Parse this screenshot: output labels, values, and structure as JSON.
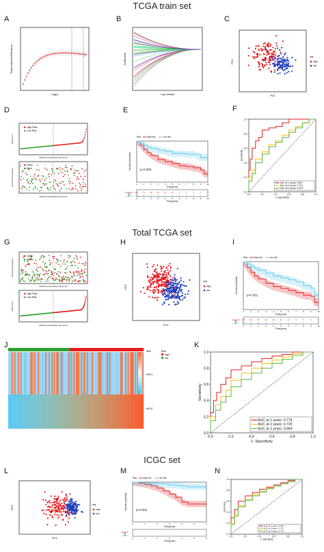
{
  "titles": {
    "train": "TCGA train set",
    "total": "Total TCGA set",
    "icgc": "ICGC set"
  },
  "panels": [
    "A",
    "B",
    "C",
    "D",
    "E",
    "F",
    "G",
    "H",
    "I",
    "J",
    "K",
    "L",
    "M",
    "N"
  ],
  "colors": {
    "high": "#e41a1c",
    "low": "#1f3fbf",
    "risk_low": "#5ec8ea",
    "dead": "#e41a1c",
    "alive": "#2ca02c",
    "auc1": "#e41a1c",
    "auc2": "#f4c20d",
    "auc3": "#55b848"
  },
  "labels": {
    "pca_x": "PC1",
    "pca_y": "PC2",
    "pca_legend_title": "risk",
    "pca_high": "high",
    "pca_low": "low",
    "surv_y": "Survival probability",
    "surv_x": "Time(years)",
    "risk_title": "Risk",
    "risk_high": "High risk",
    "risk_low": "Low risk",
    "roc_x": "1-Specificity",
    "roc_y": "Sensitivity",
    "risk_score": "Risk score",
    "surv_time": "Survival time (years)",
    "patients_x": "Patients (increasing risk socre)",
    "lasso_x": "Log(λ)",
    "lasso_y_A": "Partial Likelihood Deviance",
    "lasso_y_B": "Coefficients",
    "lasso_x_B": "Log Lambda",
    "dead": "Dead",
    "alive": "Alive",
    "high_risk": "High Risk",
    "low_risk": "Low Risk",
    "gene1": "RAC1",
    "gene2": "KIF2C",
    "heat_risk": "Risk",
    "heat_legend_high": "high",
    "heat_legend_low": "low"
  },
  "chart_data": [
    {
      "panel": "E",
      "type": "line",
      "title": "",
      "pvalue": "p=0.006",
      "xlabel": "Time(years)",
      "ylabel": "Survival probability",
      "xlim": [
        0,
        10
      ],
      "ylim": [
        0,
        1
      ],
      "series": [
        {
          "name": "High risk",
          "x": [
            0,
            0.5,
            1,
            1.5,
            2,
            3,
            4,
            5,
            6,
            7,
            8,
            9,
            9.5,
            10
          ],
          "y": [
            1,
            0.9,
            0.8,
            0.72,
            0.65,
            0.55,
            0.5,
            0.45,
            0.4,
            0.38,
            0.35,
            0.3,
            0.2,
            0.2
          ]
        },
        {
          "name": "Low risk",
          "x": [
            0,
            0.5,
            1,
            1.5,
            2,
            3,
            4,
            5,
            6,
            7,
            8,
            9,
            9.5,
            10
          ],
          "y": [
            1,
            0.95,
            0.9,
            0.85,
            0.82,
            0.78,
            0.75,
            0.7,
            0.7,
            0.68,
            0.68,
            0.6,
            0.6,
            0.6
          ]
        }
      ],
      "risk_table": {
        "High risk": [
          "184",
          "74",
          "39",
          "24",
          "15",
          "12",
          "7",
          "5",
          "4",
          "2",
          "1"
        ],
        "Low risk": [
          "184",
          "86",
          "50",
          "34",
          "22",
          "14",
          "9",
          "6",
          "3",
          "2",
          "1"
        ]
      }
    },
    {
      "panel": "F",
      "type": "line",
      "xlabel": "1-Specificity",
      "ylabel": "Sensitivity",
      "xlim": [
        0,
        1
      ],
      "ylim": [
        0,
        1
      ],
      "xticks": [
        "0.0",
        "0.2",
        "0.4",
        "0.6",
        "0.8",
        "1.0"
      ],
      "yticks": [
        "0.0",
        "0.2",
        "0.4",
        "0.6",
        "0.8",
        "1.0"
      ],
      "series": [
        {
          "name": "AUC at 1 years: 0.807",
          "x": [
            0,
            0.02,
            0.05,
            0.1,
            0.15,
            0.2,
            0.3,
            0.4,
            0.5,
            0.6,
            0.8,
            1
          ],
          "y": [
            0,
            0.3,
            0.45,
            0.6,
            0.7,
            0.75,
            0.85,
            0.88,
            0.9,
            0.95,
            1,
            1
          ]
        },
        {
          "name": "AUC at 2 years: 0.701",
          "x": [
            0,
            0.05,
            0.1,
            0.2,
            0.3,
            0.4,
            0.5,
            0.6,
            0.7,
            0.8,
            0.9,
            1
          ],
          "y": [
            0,
            0.2,
            0.3,
            0.45,
            0.55,
            0.65,
            0.7,
            0.78,
            0.85,
            0.9,
            0.95,
            1
          ]
        },
        {
          "name": "AUC at 3 years: 0.678",
          "x": [
            0,
            0.05,
            0.1,
            0.2,
            0.3,
            0.4,
            0.5,
            0.6,
            0.7,
            0.8,
            0.9,
            1
          ],
          "y": [
            0,
            0.15,
            0.25,
            0.4,
            0.52,
            0.62,
            0.68,
            0.75,
            0.82,
            0.88,
            0.95,
            1
          ]
        }
      ]
    },
    {
      "panel": "I",
      "type": "line",
      "pvalue": "p<0.001",
      "xlabel": "Time(years)",
      "ylabel": "Survival probability",
      "xlim": [
        0,
        10
      ],
      "ylim": [
        0,
        1
      ],
      "series": [
        {
          "name": "High risk",
          "x": [
            0,
            0.5,
            1,
            1.5,
            2,
            3,
            4,
            5,
            6,
            7,
            8,
            9,
            9.5,
            10
          ],
          "y": [
            1,
            0.88,
            0.78,
            0.7,
            0.64,
            0.55,
            0.48,
            0.44,
            0.4,
            0.35,
            0.3,
            0.28,
            0.15,
            0.15
          ]
        },
        {
          "name": "Low risk",
          "x": [
            0,
            0.5,
            1,
            1.5,
            2,
            3,
            4,
            5,
            6,
            7,
            8,
            9,
            9.5,
            10
          ],
          "y": [
            1,
            0.95,
            0.9,
            0.86,
            0.82,
            0.76,
            0.7,
            0.66,
            0.62,
            0.58,
            0.5,
            0.45,
            0.3,
            0.3
          ]
        }
      ],
      "risk_table": {
        "High risk": [
          "176",
          "114",
          "58",
          "36",
          "28",
          "18",
          "14",
          "9",
          "5",
          "3",
          "1"
        ],
        "Low risk": [
          "176",
          "109",
          "68",
          "44",
          "34",
          "21",
          "14",
          "11",
          "5",
          "3",
          "2"
        ]
      }
    },
    {
      "panel": "K",
      "type": "line",
      "xlabel": "1−Specificity",
      "ylabel": "Sensitivity",
      "xlim": [
        0,
        1
      ],
      "ylim": [
        0,
        1
      ],
      "xticks": [
        "0.0",
        "0.2",
        "0.4",
        "0.6",
        "0.8",
        "1.0"
      ],
      "yticks": [
        "0.0",
        "0.2",
        "0.4",
        "0.6",
        "0.8",
        "1.0"
      ],
      "series": [
        {
          "name": "AUC at 1 years: 0.774",
          "x": [
            0,
            0.03,
            0.06,
            0.1,
            0.15,
            0.2,
            0.3,
            0.4,
            0.5,
            0.6,
            0.7,
            0.8,
            0.9,
            1
          ],
          "y": [
            0,
            0.25,
            0.4,
            0.5,
            0.6,
            0.68,
            0.78,
            0.83,
            0.88,
            0.92,
            0.95,
            0.97,
            1,
            1
          ]
        },
        {
          "name": "AUC at 2 years: 0.720",
          "x": [
            0,
            0.05,
            0.1,
            0.15,
            0.2,
            0.3,
            0.4,
            0.5,
            0.6,
            0.7,
            0.8,
            0.9,
            1
          ],
          "y": [
            0,
            0.2,
            0.35,
            0.45,
            0.53,
            0.65,
            0.74,
            0.8,
            0.86,
            0.9,
            0.94,
            0.98,
            1
          ]
        },
        {
          "name": "AUC at 3 years: 0.669",
          "x": [
            0,
            0.05,
            0.1,
            0.15,
            0.2,
            0.3,
            0.4,
            0.5,
            0.6,
            0.7,
            0.8,
            0.9,
            1
          ],
          "y": [
            0,
            0.15,
            0.28,
            0.38,
            0.45,
            0.57,
            0.66,
            0.74,
            0.8,
            0.86,
            0.91,
            0.96,
            1
          ]
        }
      ]
    },
    {
      "panel": "M",
      "type": "line",
      "pvalue": "p<0.001",
      "xlabel": "Time(years)",
      "ylabel": "Survival probability",
      "xlim": [
        0,
        6
      ],
      "ylim": [
        0,
        1
      ],
      "series": [
        {
          "name": "High risk",
          "x": [
            0,
            0.5,
            1,
            1.5,
            2,
            2.5,
            3,
            3.5,
            4,
            4.5,
            5,
            6
          ],
          "y": [
            1,
            0.97,
            0.94,
            0.9,
            0.85,
            0.78,
            0.7,
            0.62,
            0.5,
            0.45,
            0.45,
            0.45
          ]
        },
        {
          "name": "Low risk",
          "x": [
            0,
            0.5,
            1,
            1.5,
            2,
            2.5,
            3,
            3.5,
            4,
            4.5,
            5,
            6
          ],
          "y": [
            1,
            0.99,
            0.98,
            0.97,
            0.96,
            0.95,
            0.93,
            0.92,
            0.9,
            0.88,
            0.88,
            0.88
          ]
        }
      ],
      "risk_table": {
        "High risk": [
          "",
          "",
          "",
          "",
          "",
          "",
          ""
        ],
        "Low risk": [
          "",
          "",
          "",
          "",
          "",
          "",
          ""
        ]
      }
    },
    {
      "panel": "N",
      "type": "line",
      "xlabel": "1−Specificity",
      "ylabel": "Sensitivity",
      "xlim": [
        0,
        1
      ],
      "ylim": [
        0,
        1
      ],
      "xticks": [
        "0.0",
        "0.2",
        "0.4",
        "0.6",
        "0.8",
        "1.0"
      ],
      "yticks": [
        "0.0",
        "0.2",
        "0.4",
        "0.6",
        "0.8",
        "1.0"
      ],
      "series": [
        {
          "name": "AUC at 1 years: 0.756",
          "x": [
            0,
            0.05,
            0.1,
            0.2,
            0.3,
            0.4,
            0.5,
            0.6,
            0.7,
            0.8,
            0.9,
            1
          ],
          "y": [
            0,
            0.3,
            0.45,
            0.6,
            0.7,
            0.76,
            0.82,
            0.86,
            0.9,
            0.94,
            0.98,
            1
          ]
        },
        {
          "name": "AUC at 2 years: 0.722",
          "x": [
            0,
            0.05,
            0.1,
            0.2,
            0.3,
            0.4,
            0.5,
            0.6,
            0.7,
            0.8,
            0.9,
            1
          ],
          "y": [
            0,
            0.2,
            0.35,
            0.52,
            0.63,
            0.72,
            0.78,
            0.84,
            0.88,
            0.92,
            0.96,
            1
          ]
        },
        {
          "name": "AUC at 3 years: 0.724",
          "x": [
            0,
            0.05,
            0.1,
            0.2,
            0.3,
            0.4,
            0.5,
            0.6,
            0.7,
            0.8,
            0.9,
            1
          ],
          "y": [
            0,
            0.18,
            0.33,
            0.5,
            0.62,
            0.7,
            0.77,
            0.83,
            0.88,
            0.92,
            0.96,
            1
          ]
        }
      ]
    }
  ]
}
